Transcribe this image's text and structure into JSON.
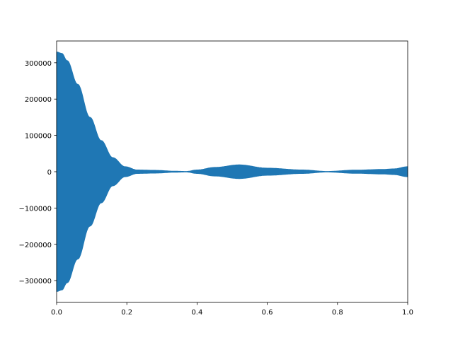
{
  "chart_data": {
    "type": "area",
    "description_of_marks": "dense oscillating signal shown by its symmetric envelope",
    "xlim": [
      0.0,
      1.0
    ],
    "ylim": [
      -360000,
      360000
    ],
    "xticks": [
      "0.0",
      "0.2",
      "0.4",
      "0.6",
      "0.8",
      "1.0"
    ],
    "yticks": [
      "300000",
      "200000",
      "100000",
      "0",
      "−100000",
      "−200000",
      "−300000"
    ],
    "ytick_values": [
      300000,
      200000,
      100000,
      0,
      -100000,
      -200000,
      -300000
    ],
    "xtick_values": [
      0.0,
      0.2,
      0.4,
      0.6,
      0.8,
      1.0
    ],
    "grid": false,
    "color": "#1f77b4",
    "envelope": {
      "x": [
        0.0,
        0.015,
        0.03,
        0.06,
        0.095,
        0.127,
        0.16,
        0.195,
        0.23,
        0.28,
        0.34,
        0.37,
        0.4,
        0.45,
        0.52,
        0.6,
        0.7,
        0.77,
        0.85,
        0.93,
        0.96,
        1.0
      ],
      "amplitude": [
        330000,
        326000,
        306000,
        241000,
        150000,
        86000,
        39000,
        14000,
        5000,
        4000,
        1500,
        1000,
        5000,
        12000,
        19000,
        10000,
        5000,
        1000,
        4500,
        6500,
        8000,
        14000
      ]
    }
  }
}
